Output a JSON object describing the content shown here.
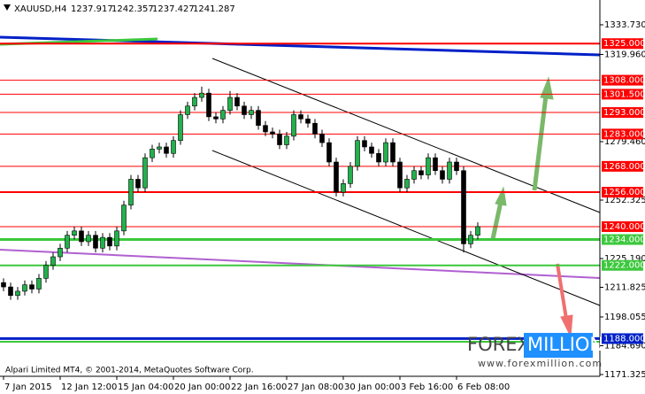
{
  "header": {
    "symbol": "XAUUSD,H4",
    "open": "1237.917",
    "high": "1242.357",
    "low": "1237.427",
    "close": "1241.287"
  },
  "footer": {
    "copyright": "Alpari Limited MT4, © 2001-2014, MetaQuotes Software Corp."
  },
  "watermark": {
    "brand1": "FOREX",
    "brand2": "MILLION",
    "url": "www.forexmillion.com"
  },
  "chart_data": {
    "type": "candlestick",
    "categories": [
      "7 Jan 2015",
      null,
      null,
      null,
      null,
      null,
      null,
      null,
      "12 Jan 12:00",
      null,
      null,
      null,
      null,
      null,
      null,
      null,
      "15 Jan 04:00",
      null,
      null,
      null,
      null,
      null,
      null,
      null,
      "20 Jan 00:00",
      null,
      null,
      null,
      null,
      null,
      null,
      null,
      "22 Jan 16:00",
      null,
      null,
      null,
      null,
      null,
      null,
      null,
      "27 Jan 08:00",
      null,
      null,
      null,
      null,
      null,
      null,
      null,
      "30 Jan 00:00",
      null,
      null,
      null,
      null,
      null,
      null,
      null,
      "3 Feb 16:00",
      null,
      null,
      null,
      null,
      null,
      null,
      null,
      "6 Feb 08:00",
      null,
      null,
      null
    ],
    "open": [
      1214,
      1212,
      1208,
      1210,
      1213,
      1211,
      1216,
      1222,
      1226,
      1230,
      1236,
      1238,
      1233,
      1236,
      1230,
      1235,
      1231,
      1238,
      1250,
      1262,
      1258,
      1272,
      1276,
      1277,
      1274,
      1280,
      1292,
      1296,
      1300,
      1302,
      1291,
      1290,
      1294,
      1300,
      1296,
      1292,
      1294,
      1287,
      1284,
      1283,
      1278,
      1282,
      1292,
      1290,
      1288,
      1283,
      1279,
      1270,
      1256,
      1260,
      1268,
      1280,
      1277,
      1274,
      1270,
      1279,
      1270,
      1258,
      1262,
      1266,
      1264,
      1272,
      1266,
      1262,
      1270,
      1266,
      1232,
      1236
    ],
    "high": [
      1216,
      1214,
      1212,
      1215,
      1215,
      1218,
      1224,
      1228,
      1232,
      1238,
      1240,
      1240,
      1238,
      1238,
      1237,
      1237,
      1240,
      1252,
      1264,
      1264,
      1274,
      1278,
      1279,
      1279,
      1282,
      1294,
      1298,
      1302,
      1305,
      1304,
      1293,
      1296,
      1303,
      1302,
      1298,
      1296,
      1296,
      1289,
      1286,
      1285,
      1284,
      1294,
      1294,
      1292,
      1290,
      1285,
      1281,
      1272,
      1262,
      1270,
      1282,
      1282,
      1279,
      1276,
      1281,
      1281,
      1272,
      1264,
      1268,
      1268,
      1274,
      1274,
      1268,
      1272,
      1272,
      1268,
      1238,
      1242
    ],
    "low": [
      1210,
      1206,
      1206,
      1208,
      1209,
      1209,
      1214,
      1220,
      1224,
      1228,
      1234,
      1231,
      1231,
      1228,
      1228,
      1229,
      1229,
      1236,
      1248,
      1256,
      1256,
      1270,
      1274,
      1272,
      1272,
      1278,
      1290,
      1294,
      1298,
      1289,
      1288,
      1288,
      1292,
      1294,
      1290,
      1290,
      1285,
      1282,
      1281,
      1276,
      1276,
      1280,
      1288,
      1286,
      1281,
      1277,
      1268,
      1254,
      1254,
      1258,
      1266,
      1275,
      1272,
      1268,
      1268,
      1268,
      1256,
      1256,
      1260,
      1262,
      1262,
      1264,
      1260,
      1260,
      1264,
      1228,
      1230,
      1234
    ],
    "close": [
      1212,
      1208,
      1210,
      1213,
      1211,
      1216,
      1222,
      1226,
      1230,
      1236,
      1238,
      1233,
      1236,
      1230,
      1235,
      1231,
      1238,
      1250,
      1262,
      1258,
      1272,
      1276,
      1277,
      1274,
      1280,
      1292,
      1296,
      1300,
      1302,
      1291,
      1290,
      1294,
      1300,
      1296,
      1292,
      1294,
      1287,
      1284,
      1283,
      1278,
      1282,
      1292,
      1290,
      1288,
      1283,
      1279,
      1270,
      1256,
      1260,
      1268,
      1280,
      1277,
      1274,
      1270,
      1279,
      1270,
      1258,
      1262,
      1266,
      1264,
      1272,
      1266,
      1262,
      1270,
      1266,
      1232,
      1236,
      1240
    ],
    "up_color": "#22b14c",
    "down_color": "#000000",
    "ylim": [
      1170.5,
      1345.24
    ],
    "yticks": [
      {
        "value": 1333.73,
        "label": "1333.730"
      },
      {
        "value": 1319.96,
        "label": "1319.960"
      },
      {
        "value": 1279.46,
        "label": "1279.460"
      },
      {
        "value": 1252.325,
        "label": "1252.325"
      },
      {
        "value": 1225.19,
        "label": "1225.190"
      },
      {
        "value": 1211.825,
        "label": "1211.825"
      },
      {
        "value": 1198.055,
        "label": "1198.055"
      },
      {
        "value": 1184.69,
        "label": "1184.690"
      },
      {
        "value": 1171.325,
        "label": "1171.325"
      }
    ],
    "levels": [
      {
        "value": 1325,
        "label": "1325.000",
        "color": "#ff0000",
        "width": 2
      },
      {
        "value": 1308,
        "label": "1308.000",
        "color": "#ff0000",
        "width": 1
      },
      {
        "value": 1301.5,
        "label": "1301.500",
        "color": "#ff0000",
        "width": 1
      },
      {
        "value": 1293,
        "label": "1293.000",
        "color": "#ff0000",
        "width": 1
      },
      {
        "value": 1283,
        "label": "1283.000",
        "color": "#ff0000",
        "width": 1
      },
      {
        "value": 1268,
        "label": "1268.000",
        "color": "#ff0000",
        "width": 1
      },
      {
        "value": 1256,
        "label": "1256.000",
        "color": "#ff0000",
        "width": 2
      },
      {
        "value": 1240,
        "label": "1240.000",
        "color": "#ff0000",
        "width": 1
      },
      {
        "value": 1234,
        "label": "1234.000",
        "color": "#3cc83c",
        "width": 3
      },
      {
        "value": 1222,
        "label": "1222.000",
        "color": "#3cc83c",
        "width": 2
      },
      {
        "value": 1188,
        "label": "1188.000",
        "color": "#0020c8",
        "width": 3
      }
    ]
  }
}
